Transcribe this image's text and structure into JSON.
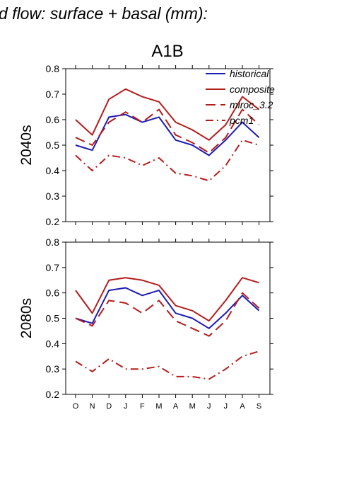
{
  "figure": {
    "header": "d flow: surface + basal (mm):",
    "scenario": "A1B"
  },
  "chart_data": [
    {
      "type": "line",
      "row_label": "2040s",
      "categories": [
        "O",
        "N",
        "D",
        "J",
        "F",
        "M",
        "A",
        "M",
        "J",
        "J",
        "A",
        "S"
      ],
      "ylim": [
        0.2,
        0.8
      ],
      "yticks": [
        "0.2",
        "0.3",
        "0.4",
        "0.5",
        "0.6",
        "0.7",
        "0.8"
      ],
      "legend": "top-right",
      "series": [
        {
          "name": "historical",
          "color": "#1c1cb4",
          "dash": "solid",
          "values": [
            0.5,
            0.48,
            0.61,
            0.62,
            0.59,
            0.61,
            0.52,
            0.5,
            0.46,
            0.52,
            0.59,
            0.53
          ]
        },
        {
          "name": "composite",
          "color": "#b41c1c",
          "dash": "solid",
          "values": [
            0.6,
            0.54,
            0.68,
            0.72,
            0.69,
            0.67,
            0.59,
            0.56,
            0.52,
            0.58,
            0.69,
            0.64
          ]
        },
        {
          "name": "miroc_3.2",
          "color": "#b41c1c",
          "dash": "dash",
          "values": [
            0.53,
            0.5,
            0.59,
            0.63,
            0.59,
            0.64,
            0.54,
            0.51,
            0.47,
            0.53,
            0.64,
            0.58
          ]
        },
        {
          "name": "pcm1",
          "color": "#b41c1c",
          "dash": "dashdot",
          "values": [
            0.46,
            0.4,
            0.46,
            0.45,
            0.42,
            0.45,
            0.39,
            0.38,
            0.36,
            0.42,
            0.52,
            0.5
          ]
        }
      ]
    },
    {
      "type": "line",
      "row_label": "2080s",
      "categories": [
        "O",
        "N",
        "D",
        "J",
        "F",
        "M",
        "A",
        "M",
        "J",
        "J",
        "A",
        "S"
      ],
      "ylim": [
        0.2,
        0.8
      ],
      "yticks": [
        "0.2",
        "0.3",
        "0.4",
        "0.5",
        "0.6",
        "0.7",
        "0.8"
      ],
      "legend": "none",
      "series": [
        {
          "name": "historical",
          "color": "#1c1cb4",
          "dash": "solid",
          "values": [
            0.5,
            0.48,
            0.61,
            0.62,
            0.59,
            0.61,
            0.52,
            0.5,
            0.46,
            0.52,
            0.59,
            0.53
          ]
        },
        {
          "name": "composite",
          "color": "#b41c1c",
          "dash": "solid",
          "values": [
            0.61,
            0.52,
            0.65,
            0.66,
            0.65,
            0.63,
            0.55,
            0.53,
            0.49,
            0.57,
            0.66,
            0.64
          ]
        },
        {
          "name": "miroc_3.2",
          "color": "#b41c1c",
          "dash": "dash",
          "values": [
            0.5,
            0.47,
            0.57,
            0.56,
            0.52,
            0.57,
            0.49,
            0.46,
            0.43,
            0.49,
            0.6,
            0.54
          ]
        },
        {
          "name": "pcm1",
          "color": "#b41c1c",
          "dash": "dashdot",
          "values": [
            0.33,
            0.29,
            0.34,
            0.3,
            0.3,
            0.31,
            0.27,
            0.27,
            0.26,
            0.3,
            0.35,
            0.37
          ]
        }
      ]
    }
  ]
}
